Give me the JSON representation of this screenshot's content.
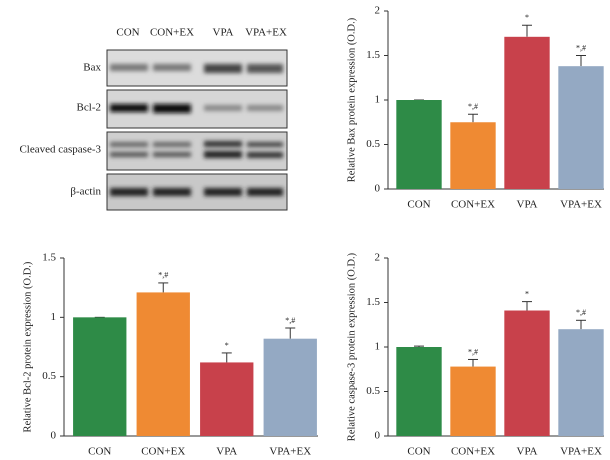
{
  "blot": {
    "columns": [
      "CON",
      "CON+EX",
      "VPA",
      "VPA+EX"
    ],
    "rows": [
      "Bax",
      "Bcl-2",
      "Cleaved caspase-3",
      "β-actin"
    ]
  },
  "chart_data": [
    {
      "type": "bar",
      "y_label": "Relative Bax protein expression (O.D.)",
      "categories": [
        "CON",
        "CON+EX",
        "VPA",
        "VPA+EX"
      ],
      "values": [
        1.0,
        0.75,
        1.71,
        1.38
      ],
      "errors": [
        0,
        0.09,
        0.13,
        0.12
      ],
      "annotations": [
        null,
        "*,#",
        "*",
        "*,#"
      ],
      "colors": [
        "#2e8b47",
        "#ef8a33",
        "#c8414b",
        "#94a9c3"
      ],
      "ylim": [
        0,
        2
      ],
      "yticks": [
        0,
        0.5,
        1,
        1.5,
        2
      ]
    },
    {
      "type": "bar",
      "y_label": "Relative Bcl-2 protein expression (O.D.)",
      "categories": [
        "CON",
        "CON+EX",
        "VPA",
        "VPA+EX"
      ],
      "values": [
        1.0,
        1.21,
        0.62,
        0.82
      ],
      "errors": [
        0,
        0.08,
        0.08,
        0.09
      ],
      "annotations": [
        null,
        "*,#",
        "*",
        "*,#"
      ],
      "colors": [
        "#2e8b47",
        "#ef8a33",
        "#c8414b",
        "#94a9c3"
      ],
      "ylim": [
        0,
        1.5
      ],
      "yticks": [
        0,
        0.5,
        1,
        1.5
      ]
    },
    {
      "type": "bar",
      "y_label": "Relative caspase-3 protein expression (O.D.)",
      "categories": [
        "CON",
        "CON+EX",
        "VPA",
        "VPA+EX"
      ],
      "values": [
        1.0,
        0.78,
        1.41,
        1.2
      ],
      "errors": [
        0.01,
        0.08,
        0.1,
        0.1
      ],
      "annotations": [
        null,
        "*,#",
        "*",
        "*,#"
      ],
      "colors": [
        "#2e8b47",
        "#ef8a33",
        "#c8414b",
        "#94a9c3"
      ],
      "ylim": [
        0,
        2
      ],
      "yticks": [
        0,
        0.5,
        1,
        1.5,
        2
      ]
    }
  ]
}
